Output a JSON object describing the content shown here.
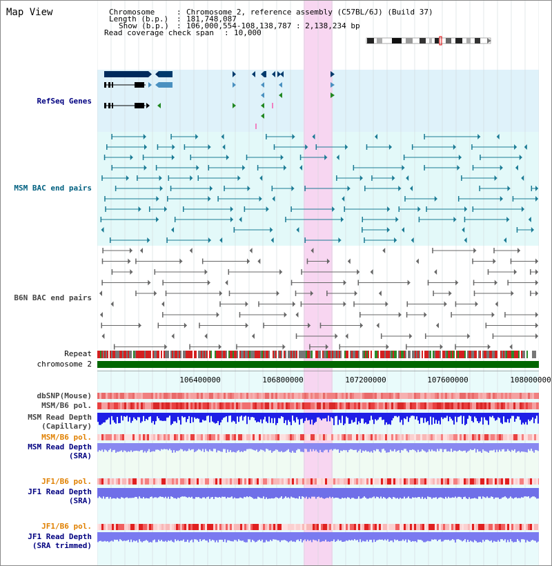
{
  "page": {
    "title": "Map View",
    "info": {
      "chromosome_label": "Chromosome",
      "chromosome_value": "Chromosome 2, reference assembly (C57BL/6J) (Build 37)",
      "length_label": "Length (b.p.)",
      "length_value": "181,748,087",
      "show_label": "Show (b.p.)",
      "show_value": "106,000,554-108,138,787 : 2,138,234 bp",
      "coverage_label": "Read coverage check span",
      "coverage_value": "10,000"
    }
  },
  "tracks": {
    "refseq": "RefSeq Genes",
    "msm_bac": "MSM BAC end pairs",
    "b6n_bac": "B6N BAC end pairs",
    "repeat": "Repeat",
    "chromosome": "chromosome 2",
    "dbsnp": "dbSNP(Mouse)",
    "msm_b6_pol_1": "MSM/B6 pol.",
    "msm_read_depth_cap_1": "MSM Read Depth",
    "msm_read_depth_cap_2": "(Capillary)",
    "msm_b6_pol_2": "MSM/B6 pol.",
    "msm_read_depth_sra_1": "MSM Read Depth",
    "msm_read_depth_sra_2": "(SRA)",
    "jf1_b6_pol_1": "JF1/B6 pol.",
    "jf1_read_depth_sra_1": "JF1 Read Depth",
    "jf1_read_depth_sra_2": "(SRA)",
    "jf1_b6_pol_2": "JF1/B6 pol.",
    "jf1_read_depth_trim_1": "JF1 Read Depth",
    "jf1_read_depth_trim_2": "(SRA trimmed)"
  },
  "axis": {
    "ticks": [
      "106400000",
      "106800000",
      "107200000",
      "107600000",
      "108000000"
    ]
  },
  "colors": {
    "refseq_bg": "#dff2fa",
    "bac_bg": "#e3f9f9",
    "highlight": "#f8d4f0",
    "chromosome_bar": "#006600",
    "depth_blue": "#1f1fe6",
    "depth_light": "#7a7af0"
  }
}
